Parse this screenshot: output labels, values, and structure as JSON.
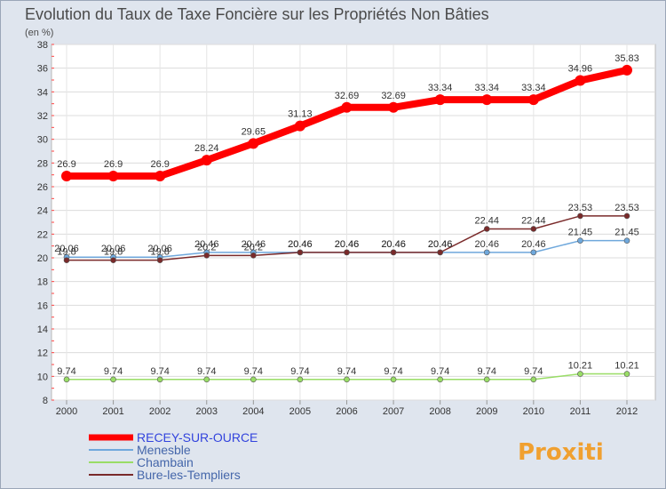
{
  "chart_data": {
    "type": "line",
    "title": "Evolution du Taux de Taxe Foncière sur les Propriétés Non Bâties",
    "subtitle": "(en %)",
    "categories": [
      "2000",
      "2001",
      "2002",
      "2003",
      "2004",
      "2005",
      "2006",
      "2007",
      "2008",
      "2009",
      "2010",
      "2011",
      "2012"
    ],
    "ylim": [
      8,
      38
    ],
    "yticks": [
      "8",
      "10",
      "12",
      "14",
      "16",
      "18",
      "20",
      "22",
      "24",
      "26",
      "28",
      "30",
      "32",
      "34",
      "36",
      "38"
    ],
    "series": [
      {
        "name": "RECEY-SUR-OURCE",
        "color": "#ff0000",
        "values": [
          26.9,
          26.9,
          26.9,
          28.24,
          29.65,
          31.13,
          32.69,
          32.69,
          33.34,
          33.34,
          33.34,
          34.96,
          35.83
        ],
        "labels": [
          "26.9",
          "26.9",
          "26.9",
          "28.24",
          "29.65",
          "31.13",
          "32.69",
          "32.69",
          "33.34",
          "33.34",
          "33.34",
          "34.96",
          "35.83"
        ]
      },
      {
        "name": "Menesble",
        "color": "#6fa8dc",
        "values": [
          20.06,
          20.06,
          20.06,
          20.46,
          20.46,
          20.46,
          20.46,
          20.46,
          20.46,
          20.46,
          20.46,
          21.45,
          21.45
        ],
        "labels": [
          "20.06",
          "20.06",
          "20.06",
          "20.46",
          "20.46",
          "20.46",
          "20.46",
          "20.46",
          "20.46",
          "20.46",
          "20.46",
          "21.45",
          "21.45"
        ]
      },
      {
        "name": "Chambain",
        "color": "#99dd66",
        "values": [
          9.74,
          9.74,
          9.74,
          9.74,
          9.74,
          9.74,
          9.74,
          9.74,
          9.74,
          9.74,
          9.74,
          10.21,
          10.21
        ],
        "labels": [
          "9.74",
          "9.74",
          "9.74",
          "9.74",
          "9.74",
          "9.74",
          "9.74",
          "9.74",
          "9.74",
          "9.74",
          "9.74",
          "10.21",
          "10.21"
        ]
      },
      {
        "name": "Bure-les-Templiers",
        "color": "#7a2a2a",
        "values": [
          19.8,
          19.8,
          19.8,
          20.2,
          20.2,
          20.46,
          20.46,
          20.46,
          20.46,
          22.44,
          22.44,
          23.53,
          23.53
        ],
        "labels": [
          "19.8",
          "19.8",
          "19.8",
          "20.2",
          "20.2",
          "20.46",
          "20.46",
          "20.46",
          "20.46",
          "22.44",
          "22.44",
          "23.53",
          "23.53"
        ]
      }
    ],
    "legend_position": "bottom-left",
    "watermark": "Proxiti"
  }
}
